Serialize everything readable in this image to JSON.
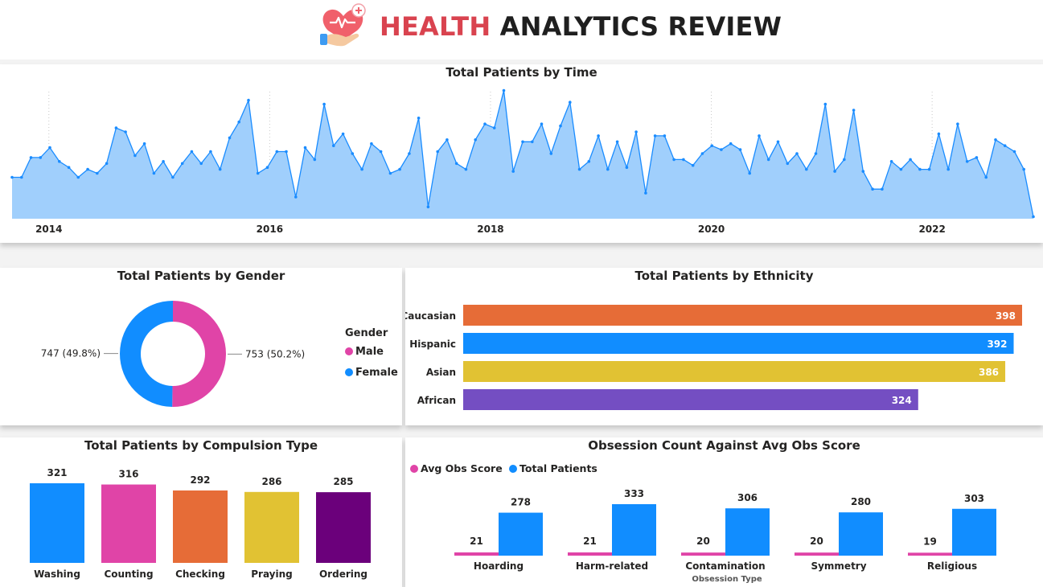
{
  "header": {
    "title_accent": "HEALTH",
    "title_rest": "ANALYTICS REVIEW",
    "logo_icon": "heart-in-hand-icon",
    "accent_color": "#d9434f"
  },
  "time_chart": {
    "title": "Total Patients by Time",
    "chart_data": {
      "type": "area",
      "title": "Total Patients by Time",
      "x_tick_labels": [
        "2014",
        "2016",
        "2018",
        "2020",
        "2022"
      ],
      "x_start": "2013-09",
      "x_end": "2022-12",
      "series": [
        {
          "color": "#1a8cff",
          "values": [
            5,
            5,
            15,
            15,
            20,
            13,
            10,
            5,
            9,
            7,
            12,
            30,
            28,
            16,
            22,
            7,
            13,
            5,
            12,
            18,
            12,
            18,
            9,
            25,
            33,
            44,
            7,
            10,
            18,
            18,
            -5,
            20,
            14,
            42,
            21,
            27,
            17,
            9,
            22,
            18,
            7,
            9,
            17,
            35,
            -10,
            18,
            24,
            12,
            9,
            24,
            32,
            30,
            49,
            8,
            23,
            23,
            32,
            17,
            31,
            43,
            9,
            13,
            26,
            9,
            23,
            10,
            28,
            -3,
            26,
            26,
            14,
            14,
            11,
            17,
            21,
            19,
            22,
            19,
            7,
            26,
            14,
            23,
            12,
            17,
            9,
            17,
            42,
            8,
            14,
            39,
            8,
            -1,
            -1,
            13,
            9,
            14,
            9,
            9,
            27,
            9,
            32,
            13,
            15,
            5,
            24,
            21,
            18,
            9,
            -15
          ]
        }
      ],
      "ylim": [
        -16,
        50
      ]
    }
  },
  "gender_chart": {
    "title": "Total Patients by Gender",
    "legend_title": "Gender",
    "chart_data": {
      "type": "pie",
      "title": "Total Patients by Gender",
      "labels": [
        "Male",
        "Female"
      ],
      "values": [
        753,
        747
      ],
      "data_labels": [
        "753 (50.2%)",
        "747 (49.8%)"
      ],
      "colors": [
        "#e044a7",
        "#118dff"
      ],
      "legend_position": "right"
    }
  },
  "ethnicity_chart": {
    "title": "Total Patients by Ethnicity",
    "chart_data": {
      "type": "bar",
      "orientation": "horizontal",
      "title": "Total Patients by Ethnicity",
      "categories": [
        "Caucasian",
        "Hispanic",
        "Asian",
        "African"
      ],
      "values": [
        398,
        392,
        386,
        324
      ],
      "colors": [
        "#e66c37",
        "#118dff",
        "#e1c233",
        "#744ec2"
      ],
      "xlim": [
        0,
        398
      ]
    }
  },
  "compulsion_chart": {
    "title": "Total Patients by Compulsion Type",
    "chart_data": {
      "type": "bar",
      "title": "Total Patients by Compulsion Type",
      "categories": [
        "Washing",
        "Counting",
        "Checking",
        "Praying",
        "Ordering"
      ],
      "values": [
        321,
        316,
        292,
        286,
        285
      ],
      "colors": [
        "#118dff",
        "#e044a7",
        "#e66c37",
        "#e1c233",
        "#6b007b"
      ],
      "ylim": [
        0,
        321
      ]
    }
  },
  "obsession_chart": {
    "title": "Obsession Count Against Avg Obs Score",
    "chart_data": {
      "type": "bar",
      "title": "Obsession Count Against Avg Obs Score",
      "xlabel": "Obsession Type",
      "categories": [
        "Hoarding",
        "Harm-related",
        "Contamination",
        "Symmetry",
        "Religious"
      ],
      "series": [
        {
          "name": "Avg Obs Score",
          "color": "#e044a7",
          "values": [
            21,
            21,
            20,
            20,
            19
          ]
        },
        {
          "name": "Total Patients",
          "color": "#118dff",
          "values": [
            278,
            333,
            306,
            280,
            303
          ]
        }
      ],
      "legend_position": "top-left"
    }
  }
}
